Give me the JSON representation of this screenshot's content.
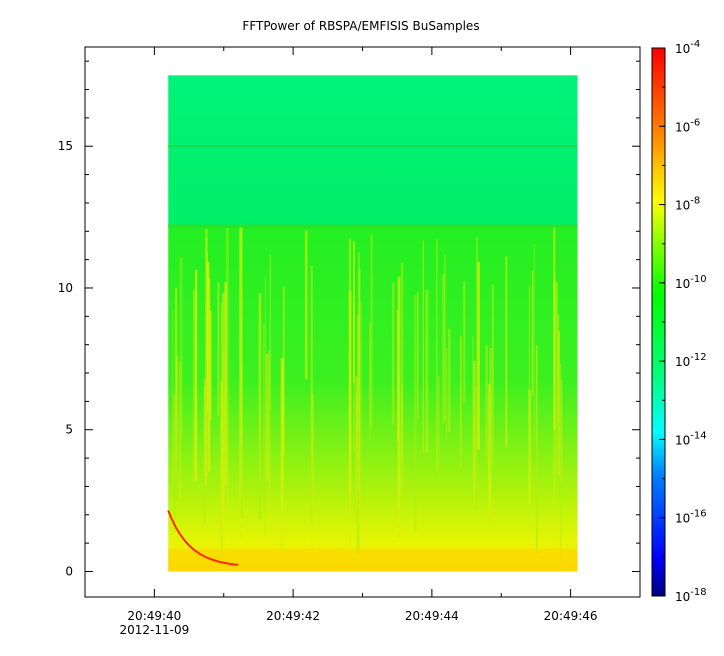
{
  "chart_data": {
    "type": "heatmap",
    "title": "FFTPower of RBSPA/EMFISIS  BuSamples",
    "x_tick_labels": [
      "20:49:40",
      "20:49:42",
      "20:49:44",
      "20:49:46"
    ],
    "x_date_label": "2012-11-09",
    "x_range": [
      "20:49:39.0",
      "20:49:47.0"
    ],
    "data_time_range": [
      "20:49:40.2",
      "20:49:46.1"
    ],
    "y_ticks": [
      0,
      5,
      10,
      15
    ],
    "ylim": [
      -0.9,
      18.5
    ],
    "data_frequency_range": [
      0,
      17.5
    ],
    "colorbar": {
      "scale": "log",
      "range": [
        1e-18,
        0.0001
      ],
      "ticks": [
        {
          "base": "10",
          "exp": "-4",
          "value": 0.0001
        },
        {
          "base": "10",
          "exp": "-6",
          "value": 1e-06
        },
        {
          "base": "10",
          "exp": "-8",
          "value": 1e-08
        },
        {
          "base": "10",
          "exp": "-10",
          "value": 1e-10
        },
        {
          "base": "10",
          "exp": "-12",
          "value": 1e-12
        },
        {
          "base": "10",
          "exp": "-14",
          "value": 1e-14
        },
        {
          "base": "10",
          "exp": "-16",
          "value": 1e-16
        },
        {
          "base": "10",
          "exp": "-18",
          "value": 1e-18
        }
      ],
      "colormap": [
        "#00007f",
        "#0000ff",
        "#0080ff",
        "#00ffff",
        "#00ff80",
        "#00ff00",
        "#80ff00",
        "#ffff00",
        "#ff8000",
        "#ff0000"
      ]
    },
    "features": {
      "band_boundary_frequency": 12.2,
      "upper_band_power": 1e-12,
      "lower_band_power": 1e-10,
      "line_frequency": 15
    }
  }
}
